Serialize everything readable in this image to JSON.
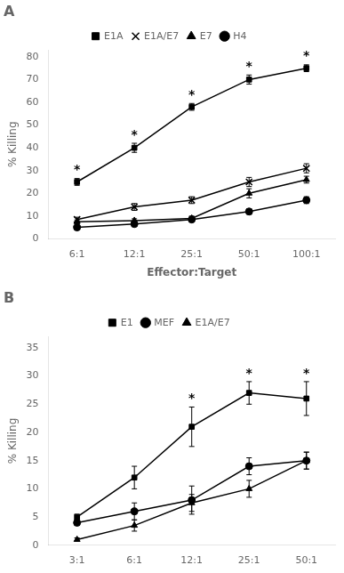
{
  "chart_data": [
    {
      "type": "line",
      "title": "A",
      "xlabel": "Effector:Target",
      "ylabel": "% Killing",
      "categories": [
        "6:1",
        "12:1",
        "25:1",
        "50:1",
        "100:1"
      ],
      "series": [
        {
          "name": "E1A",
          "color": "#000000",
          "marker": "square",
          "values": [
            25,
            40,
            58,
            70,
            75
          ],
          "errors": [
            1.5,
            2.0,
            1.5,
            2.0,
            1.5
          ]
        },
        {
          "name": "E1A/E7",
          "color": "#000000",
          "marker": "x",
          "values": [
            8.5,
            14,
            17,
            25,
            31
          ],
          "errors": [
            1.0,
            1.5,
            1.5,
            2.0,
            2.0
          ]
        },
        {
          "name": "E7",
          "color": "#000000",
          "marker": "triangle",
          "values": [
            7.5,
            8,
            9,
            20,
            26
          ],
          "errors": [
            0.8,
            0.8,
            1.0,
            2.0,
            1.5
          ]
        },
        {
          "name": "H4",
          "color": "#000000",
          "marker": "circle",
          "values": [
            5,
            6.5,
            8.5,
            12,
            17
          ],
          "errors": [
            0.5,
            0.8,
            1.0,
            1.2,
            1.5
          ]
        }
      ],
      "annotations": [
        {
          "text": "*",
          "series": "E1A",
          "category": "6:1"
        },
        {
          "text": "*",
          "series": "E1A",
          "category": "12:1"
        },
        {
          "text": "*",
          "series": "E1A",
          "category": "25:1"
        },
        {
          "text": "*",
          "series": "E1A",
          "category": "50:1"
        },
        {
          "text": "*",
          "series": "E1A",
          "category": "100:1"
        }
      ],
      "ylim": [
        0,
        83
      ],
      "yticks": [
        0,
        10,
        20,
        30,
        40,
        50,
        60,
        70,
        80
      ],
      "grid": false,
      "legend": "top"
    },
    {
      "type": "line",
      "title": "B",
      "ylabel": "% Killing",
      "categories": [
        "3:1",
        "6:1",
        "12:1",
        "25:1",
        "50:1"
      ],
      "series": [
        {
          "name": "E1",
          "color": "#000000",
          "marker": "square",
          "values": [
            5,
            12,
            21,
            27,
            26
          ],
          "errors": [
            0.5,
            2.0,
            3.5,
            2.0,
            3.0
          ]
        },
        {
          "name": "MEF",
          "color": "#000000",
          "marker": "circle",
          "values": [
            4,
            6,
            8,
            14,
            15
          ],
          "errors": [
            0.5,
            1.5,
            2.5,
            1.5,
            1.5
          ]
        },
        {
          "name": "E1A/E7",
          "color": "#000000",
          "marker": "triangle",
          "values": [
            1,
            3.5,
            7.5,
            10,
            15
          ],
          "errors": [
            0.3,
            1.0,
            1.5,
            1.5,
            1.5
          ]
        }
      ],
      "annotations": [
        {
          "text": "*",
          "series": "E1",
          "category": "12:1"
        },
        {
          "text": "*",
          "series": "E1",
          "category": "25:1"
        },
        {
          "text": "*",
          "series": "E1",
          "category": "50:1"
        }
      ],
      "ylim": [
        0,
        37
      ],
      "yticks": [
        0,
        5,
        10,
        15,
        20,
        25,
        30,
        35
      ],
      "grid": false,
      "legend": "top"
    }
  ]
}
